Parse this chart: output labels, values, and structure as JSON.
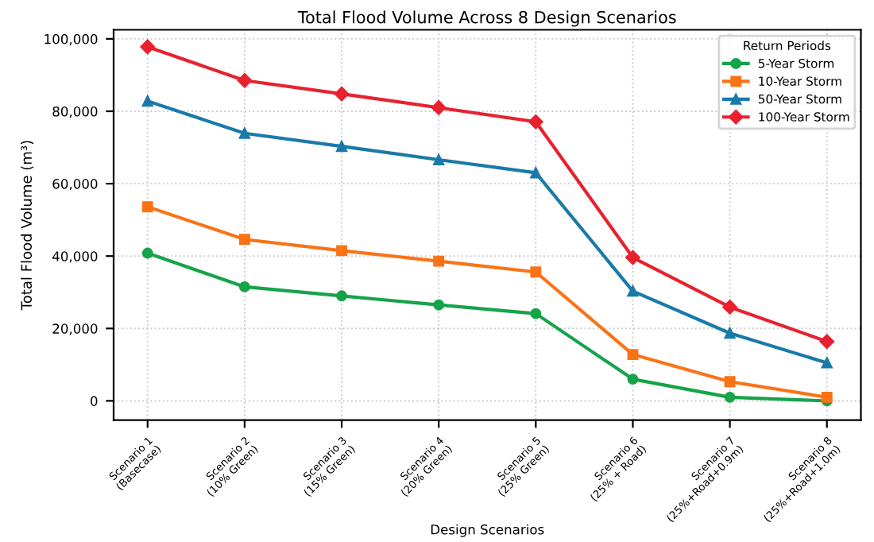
{
  "chart_data": {
    "type": "line",
    "title": "Total Flood Volume Across 8 Design Scenarios",
    "xlabel": "Design Scenarios",
    "ylabel": "Total Flood Volume (m³)",
    "legend_title": "Return Periods",
    "categories": [
      "Scenario 1\n(Basecase)",
      "Scenario 2\n(10% Green)",
      "Scenario 3\n(15% Green)",
      "Scenario 4\n(20% Green)",
      "Scenario 5\n(25% Green)",
      "Scenario 6\n(25% + Road)",
      "Scenario 7\n(25%+Road+0.9m)",
      "Scenario 8\n(25%+Road+1.0m)"
    ],
    "series": [
      {
        "name": "5-Year Storm",
        "color": "#16a34a",
        "marker": "circle",
        "values": [
          40800,
          31500,
          29000,
          26500,
          24100,
          6000,
          1000,
          0
        ]
      },
      {
        "name": "10-Year Storm",
        "color": "#f97316",
        "marker": "square",
        "values": [
          53600,
          44600,
          41500,
          38600,
          35600,
          12800,
          5300,
          1000
        ]
      },
      {
        "name": "50-Year Storm",
        "color": "#1a7aa8",
        "marker": "triangle",
        "values": [
          82800,
          73900,
          70300,
          66600,
          63000,
          30300,
          18700,
          10500
        ]
      },
      {
        "name": "100-Year Storm",
        "color": "#e8212f",
        "marker": "diamond",
        "values": [
          97800,
          88500,
          84800,
          81000,
          77100,
          39600,
          25900,
          16400
        ]
      }
    ],
    "ylim": [
      -5300,
      102500
    ],
    "yticks": [
      {
        "value": 0,
        "label": "0"
      },
      {
        "value": 20000,
        "label": "20,000"
      },
      {
        "value": 40000,
        "label": "40,000"
      },
      {
        "value": 60000,
        "label": "60,000"
      },
      {
        "value": 80000,
        "label": "80,000"
      },
      {
        "value": 100000,
        "label": "100,000"
      }
    ],
    "grid": true,
    "legend": "top right",
    "line_style": "solid"
  }
}
